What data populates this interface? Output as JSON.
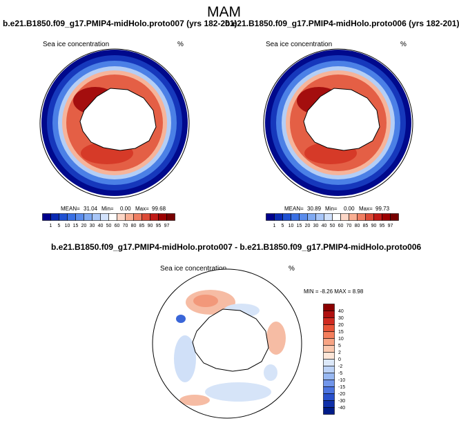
{
  "figure_title": "MAM",
  "panels": [
    {
      "title": "b.e21.B1850.f09_g17.PMIP4-midHolo.proto007 (yrs 182-201)",
      "variable": "Sea ice concentration",
      "units": "%",
      "stats": {
        "mean_label": "MEAN=",
        "mean": "31.04",
        "min_label": "Min=",
        "min": "0.00",
        "max_label": "Max=",
        "max": "99.68"
      }
    },
    {
      "title": "b.e21.B1850.f09_g17.PMIP4-midHolo.proto006 (yrs 182-201)",
      "variable": "Sea ice concentration",
      "units": "%",
      "stats": {
        "mean_label": "MEAN=",
        "mean": "30.89",
        "min_label": "Min=",
        "min": "0.00",
        "max_label": "Max=",
        "max": "99.73"
      }
    },
    {
      "title": "b.e21.B1850.f09_g17.PMIP4-midHolo.proto007 - b.e21.B1850.f09_g17.PMIP4-midHolo.proto006",
      "variable": "Sea ice concentration",
      "units": "%",
      "stats_text": "MIN =  -8.26 MAX =   8.98"
    }
  ],
  "colorbar_abs": {
    "labels": [
      "1",
      "5",
      "10",
      "15",
      "20",
      "30",
      "40",
      "50",
      "60",
      "70",
      "80",
      "85",
      "90",
      "95",
      "97"
    ],
    "colors": [
      "#00008c",
      "#0a2ab4",
      "#1e50d2",
      "#3a70e4",
      "#5a8cec",
      "#80aaf2",
      "#a8c6f8",
      "#d2e2fc",
      "#ffffff",
      "#fcd6c6",
      "#f9ae92",
      "#f07e62",
      "#dc4a36",
      "#c01a16",
      "#9c0000",
      "#780000"
    ]
  },
  "colorbar_diff": {
    "labels": [
      "40",
      "30",
      "20",
      "15",
      "10",
      "5",
      "2",
      "0",
      "-2",
      "-5",
      "-10",
      "-15",
      "-20",
      "-30",
      "-40"
    ],
    "colors": [
      "#8c0000",
      "#b01010",
      "#d02a20",
      "#e85438",
      "#f47e5c",
      "#f8a484",
      "#fbc8ae",
      "#fde6d8",
      "#dce8f8",
      "#bcd2f6",
      "#98b8f2",
      "#7296ea",
      "#4c74e0",
      "#2850cc",
      "#1030aa",
      "#001c88"
    ]
  }
}
